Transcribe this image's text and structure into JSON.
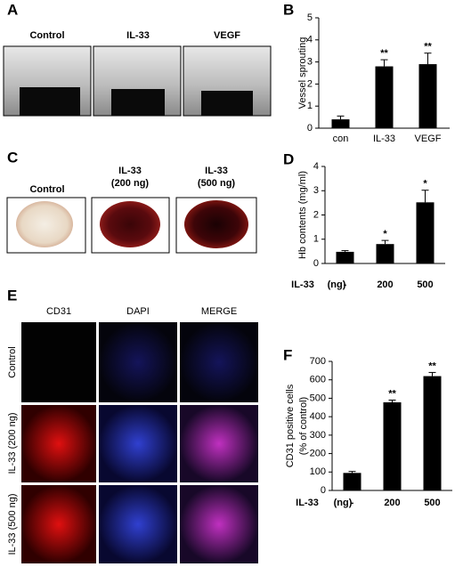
{
  "panel_labels": [
    "A",
    "B",
    "C",
    "D",
    "E",
    "F"
  ],
  "panel_a": {
    "labels": [
      "Control",
      "IL-33",
      "VEGF"
    ]
  },
  "panel_c": {
    "labels": [
      [
        "Control"
      ],
      [
        "IL-33",
        "(200 ng)"
      ],
      [
        "IL-33",
        "(500 ng)"
      ]
    ]
  },
  "panel_e": {
    "columns": [
      "CD31",
      "DAPI",
      "MERGE"
    ],
    "rows": [
      "Control",
      "IL-33 (200 ng)",
      "IL-33 (500 ng)"
    ]
  },
  "chart_data": [
    {
      "type": "bar",
      "ylabel": [
        "Vessel sprouting"
      ],
      "categories": [
        "con",
        "IL-33",
        "VEGF"
      ],
      "values": [
        0.4,
        2.8,
        2.9
      ],
      "errors": [
        0.15,
        0.3,
        0.5
      ],
      "significance": [
        null,
        "**",
        "**"
      ],
      "ylim": [
        0,
        5
      ],
      "yticks": [
        0,
        1,
        2,
        3,
        4,
        5
      ],
      "color": "#000000"
    },
    {
      "type": "bar",
      "ylabel": [
        "Hb contents (mg/ml)"
      ],
      "xlabel": "IL-33",
      "xunit": "(ng)",
      "categories": [
        "-",
        "200",
        "500"
      ],
      "values": [
        0.48,
        0.8,
        2.52
      ],
      "errors": [
        0.05,
        0.15,
        0.5
      ],
      "significance": [
        null,
        "*",
        "*"
      ],
      "ylim": [
        0,
        4
      ],
      "yticks": [
        0,
        1,
        2,
        3,
        4
      ],
      "color": "#000000"
    },
    {
      "type": "bar",
      "ylabel": [
        "CD31 positive cells",
        "(% of control)"
      ],
      "xlabel": "IL-33",
      "xunit": "(ng)",
      "categories": [
        "-",
        "200",
        "500"
      ],
      "values": [
        95,
        478,
        620
      ],
      "errors": [
        8,
        12,
        20
      ],
      "significance": [
        null,
        "**",
        "**"
      ],
      "ylim": [
        0,
        700
      ],
      "yticks": [
        0,
        100,
        200,
        300,
        400,
        500,
        600,
        700
      ],
      "color": "#000000"
    }
  ]
}
